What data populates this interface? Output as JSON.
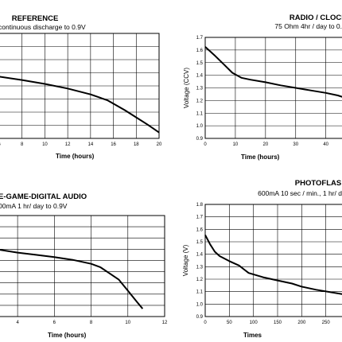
{
  "chart_data": [
    {
      "type": "line",
      "title": "REFERENCE",
      "subtitle": "continuous discharge to 0.9V",
      "xlabel": "Time (hours)",
      "ylabel": "",
      "xticks": [
        6,
        8,
        10,
        12,
        14,
        16,
        18,
        20
      ],
      "yticks": [],
      "xlim": [
        6,
        20
      ],
      "ylim": [
        0.9,
        1.7
      ],
      "grid": true,
      "series": [
        {
          "x": [
            6,
            8,
            10,
            12,
            14,
            15.5,
            17,
            18,
            19,
            20
          ],
          "y": [
            1.37,
            1.345,
            1.315,
            1.28,
            1.235,
            1.19,
            1.115,
            1.06,
            1.005,
            0.945
          ]
        }
      ]
    },
    {
      "type": "line",
      "title": "RADIO / CLOCK",
      "subtitle": "75 Ohm 4hr / day to 0.",
      "xlabel": "Time (hours)",
      "ylabel": "Voltage (CCV)",
      "xticks": [
        0,
        10,
        20,
        30,
        40
      ],
      "yticks": [
        0.9,
        1.0,
        1.1,
        1.2,
        1.3,
        1.4,
        1.5,
        1.6,
        1.7
      ],
      "xlim": [
        0,
        48
      ],
      "ylim": [
        0.9,
        1.7
      ],
      "grid": true,
      "series": [
        {
          "x": [
            0,
            3,
            6,
            9,
            12,
            15,
            20,
            25,
            30,
            35,
            40,
            44,
            48
          ],
          "y": [
            1.625,
            1.56,
            1.49,
            1.42,
            1.38,
            1.365,
            1.345,
            1.32,
            1.3,
            1.28,
            1.26,
            1.24,
            1.21
          ]
        }
      ]
    },
    {
      "type": "line",
      "title": "E-GAME-DIGITAL AUDIO",
      "subtitle": "00mA 1 hr/ day to 0.9V",
      "xlabel": "Time (hours)",
      "ylabel": "",
      "xticks": [
        4,
        6,
        8,
        10,
        12
      ],
      "yticks": [],
      "xlim": [
        3,
        12
      ],
      "ylim": [
        0.9,
        1.8
      ],
      "grid": true,
      "series": [
        {
          "x": [
            3,
            4,
            5,
            6,
            7,
            8,
            8.5,
            9,
            9.5,
            10,
            10.5,
            10.8
          ],
          "y": [
            1.495,
            1.47,
            1.45,
            1.43,
            1.405,
            1.37,
            1.34,
            1.285,
            1.23,
            1.13,
            1.03,
            0.97
          ]
        }
      ]
    },
    {
      "type": "line",
      "title": "PHOTOFLAS",
      "subtitle": "600mA 10 sec / min., 1 hr/ d",
      "xlabel": "Times",
      "ylabel": "Voltage (V)",
      "xticks": [
        0,
        50,
        100,
        150,
        200,
        250
      ],
      "yticks": [
        0.9,
        1.0,
        1.1,
        1.2,
        1.3,
        1.4,
        1.5,
        1.6,
        1.7,
        1.8
      ],
      "xlim": [
        0,
        300
      ],
      "ylim": [
        0.9,
        1.8
      ],
      "grid": true,
      "series": [
        {
          "x": [
            0,
            10,
            20,
            30,
            50,
            70,
            80,
            90,
            120,
            150,
            180,
            200,
            230,
            260,
            300
          ],
          "y": [
            1.555,
            1.48,
            1.42,
            1.385,
            1.345,
            1.31,
            1.28,
            1.25,
            1.215,
            1.19,
            1.165,
            1.14,
            1.115,
            1.095,
            1.07
          ]
        }
      ]
    }
  ]
}
